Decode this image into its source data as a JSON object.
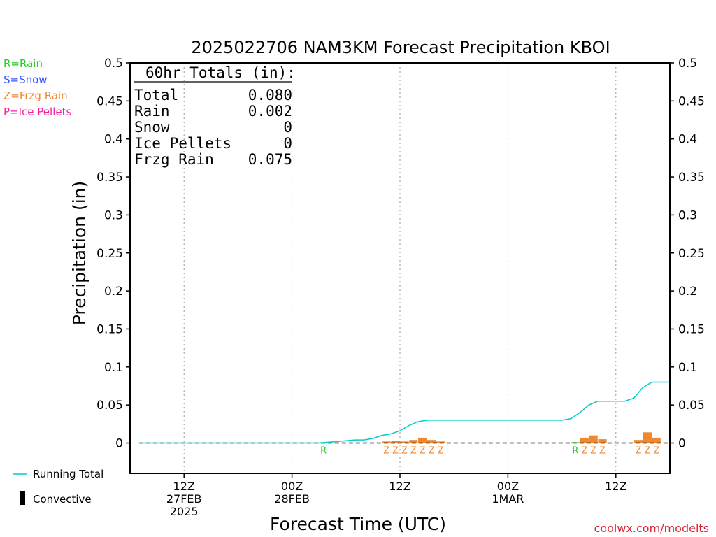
{
  "chart_data": {
    "type": "bar",
    "title": "2025022706 NAM3KM Forecast Precipitation KBOI",
    "xlabel": "Forecast Time (UTC)",
    "ylabel": "Precipitation (in)",
    "ylim": [
      -0.04,
      0.5
    ],
    "yticks": [
      0,
      0.05,
      0.1,
      0.15,
      0.2,
      0.25,
      0.3,
      0.35,
      0.4,
      0.45,
      0.5
    ],
    "ytick_labels": [
      "0",
      "0.05",
      "0.1",
      "0.15",
      "0.2",
      "0.25",
      "0.3",
      "0.35",
      "0.4",
      "0.45",
      "0.5"
    ],
    "xlim": [
      0,
      60
    ],
    "xticks": [
      {
        "hour": 6,
        "lines": [
          "12Z",
          "27FEB",
          "2025"
        ]
      },
      {
        "hour": 18,
        "lines": [
          "00Z",
          "28FEB"
        ]
      },
      {
        "hour": 30,
        "lines": [
          "12Z"
        ]
      },
      {
        "hour": 42,
        "lines": [
          "00Z",
          "1MAR"
        ]
      },
      {
        "hour": 54,
        "lines": [
          "12Z"
        ]
      }
    ],
    "grid": "dotted-vertical",
    "type_legend": [
      {
        "code": "R",
        "label": "R=Rain",
        "color": "#22cc22"
      },
      {
        "code": "S",
        "label": "S=Snow",
        "color": "#3355ff"
      },
      {
        "code": "Z",
        "label": "Z=Frzg Rain",
        "color": "#ee8833"
      },
      {
        "code": "P",
        "label": "P=Ice Pellets",
        "color": "#ee2299"
      }
    ],
    "series_legend": [
      {
        "name": "Running Total",
        "kind": "line",
        "color": "#00cccc"
      },
      {
        "name": "Convective",
        "kind": "bar",
        "color": "#000000"
      }
    ],
    "running_total": {
      "hours": [
        1,
        2,
        3,
        4,
        5,
        6,
        7,
        8,
        9,
        10,
        11,
        12,
        13,
        14,
        15,
        16,
        17,
        18,
        19,
        20,
        21,
        22,
        23,
        24,
        25,
        26,
        27,
        28,
        29,
        30,
        31,
        32,
        33,
        34,
        35,
        36,
        37,
        38,
        39,
        40,
        41,
        42,
        43,
        44,
        45,
        46,
        47,
        48,
        49,
        50,
        51,
        52,
        53,
        54,
        55,
        56,
        57,
        58,
        59,
        60
      ],
      "values": [
        0,
        0,
        0,
        0,
        0,
        0,
        0,
        0,
        0,
        0,
        0,
        0,
        0,
        0,
        0,
        0,
        0,
        0,
        0,
        0,
        0,
        0.001,
        0.002,
        0.003,
        0.004,
        0.004,
        0.006,
        0.01,
        0.012,
        0.016,
        0.023,
        0.028,
        0.03,
        0.03,
        0.03,
        0.03,
        0.03,
        0.03,
        0.03,
        0.03,
        0.03,
        0.03,
        0.03,
        0.03,
        0.03,
        0.03,
        0.03,
        0.03,
        0.032,
        0.04,
        0.05,
        0.055,
        0.055,
        0.055,
        0.055,
        0.059,
        0.073,
        0.08,
        0.08,
        0.08
      ]
    },
    "hourly_precip": [
      {
        "hour": 22,
        "value": 0.001,
        "type": "R"
      },
      {
        "hour": 29,
        "value": 0.002,
        "type": "Z"
      },
      {
        "hour": 30,
        "value": 0.003,
        "type": "Z"
      },
      {
        "hour": 31,
        "value": 0.002,
        "type": "Z"
      },
      {
        "hour": 32,
        "value": 0.004,
        "type": "Z"
      },
      {
        "hour": 33,
        "value": 0.007,
        "type": "Z"
      },
      {
        "hour": 34,
        "value": 0.004,
        "type": "Z"
      },
      {
        "hour": 35,
        "value": 0.002,
        "type": "Z"
      },
      {
        "hour": 50,
        "value": 0.001,
        "type": "R"
      },
      {
        "hour": 51,
        "value": 0.007,
        "type": "Z"
      },
      {
        "hour": 52,
        "value": 0.01,
        "type": "Z"
      },
      {
        "hour": 53,
        "value": 0.005,
        "type": "Z"
      },
      {
        "hour": 57,
        "value": 0.004,
        "type": "Z"
      },
      {
        "hour": 58,
        "value": 0.014,
        "type": "Z"
      },
      {
        "hour": 59,
        "value": 0.007,
        "type": "Z"
      }
    ],
    "totals_box": {
      "heading": "60hr Totals (in):",
      "rows": [
        {
          "label": "Total",
          "value": "0.080"
        },
        {
          "label": "Rain",
          "value": "0.002"
        },
        {
          "label": "Snow",
          "value": "0"
        },
        {
          "label": "Ice Pellets",
          "value": "0"
        },
        {
          "label": "Frzg Rain",
          "value": "0.075"
        }
      ]
    },
    "credit": "coolwx.com/modelts"
  }
}
